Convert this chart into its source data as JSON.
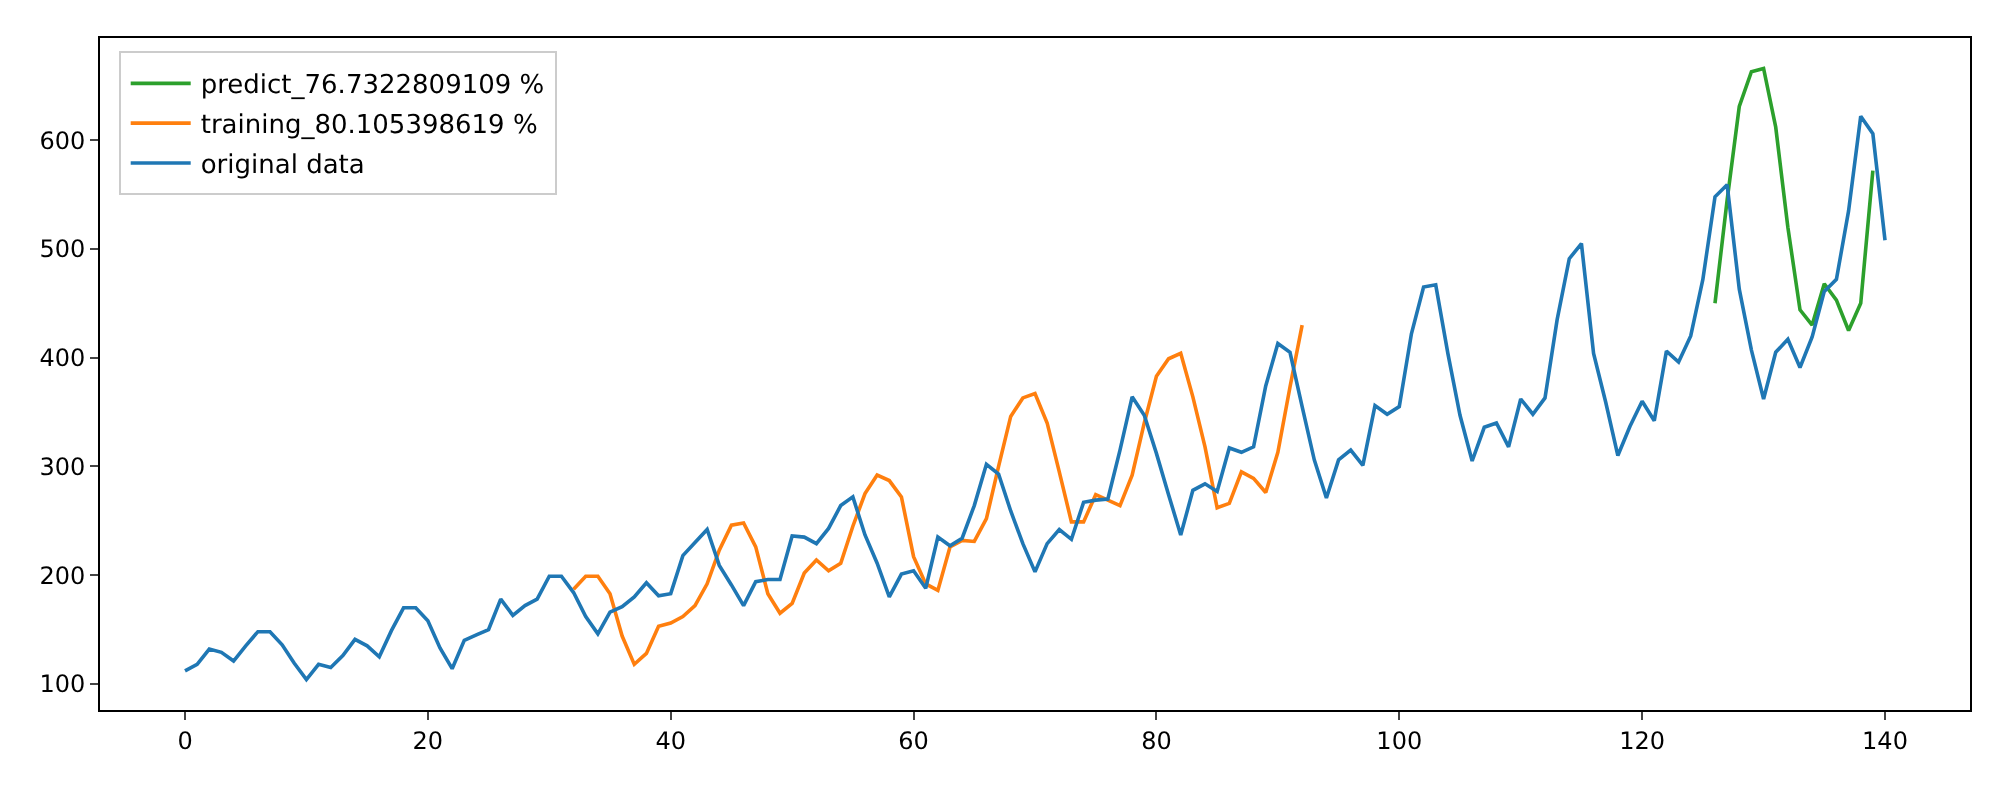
{
  "chart_data": {
    "type": "line",
    "xlim": [
      -7,
      147
    ],
    "ylim": [
      76,
      694
    ],
    "xticks": [
      0,
      20,
      40,
      60,
      80,
      100,
      120,
      140
    ],
    "yticks": [
      100,
      200,
      300,
      400,
      500,
      600
    ],
    "legend": "top left",
    "series": [
      {
        "name": "predict_76.7322809109 %",
        "color": "#2ca02c",
        "x": [
          126,
          127,
          128,
          129,
          130,
          131,
          132,
          133,
          134,
          135,
          136,
          137,
          138,
          139
        ],
        "values": [
          450,
          545,
          631,
          663,
          666,
          612,
          520,
          444,
          430,
          468,
          453,
          425,
          450,
          572
        ]
      },
      {
        "name": "training_80.105398619 %",
        "color": "#ff7f0e",
        "x": [
          32,
          33,
          34,
          35,
          36,
          37,
          38,
          39,
          40,
          41,
          42,
          43,
          44,
          45,
          46,
          47,
          48,
          49,
          50,
          51,
          52,
          53,
          54,
          55,
          56,
          57,
          58,
          59,
          60,
          61,
          62,
          63,
          64,
          65,
          66,
          67,
          68,
          69,
          70,
          71,
          72,
          73,
          74,
          75,
          76,
          77,
          78,
          79,
          80,
          81,
          82,
          83,
          84,
          85,
          86,
          87,
          88,
          89,
          90,
          91,
          92
        ],
        "values": [
          187,
          199,
          199,
          183,
          144,
          118,
          128,
          153,
          156,
          162,
          172,
          192,
          223,
          246,
          248,
          226,
          183,
          165,
          174,
          202,
          214,
          204,
          211,
          245,
          275,
          292,
          287,
          272,
          217,
          192,
          186,
          226,
          232,
          231,
          252,
          300,
          346,
          363,
          367,
          340,
          295,
          249,
          249,
          274,
          269,
          264,
          292,
          340,
          383,
          399,
          404,
          364,
          318,
          262,
          266,
          295,
          289,
          276,
          313,
          373,
          430
        ]
      },
      {
        "name": "original data",
        "color": "#1f77b4",
        "x": [
          0,
          1,
          2,
          3,
          4,
          5,
          6,
          7,
          8,
          9,
          10,
          11,
          12,
          13,
          14,
          15,
          16,
          17,
          18,
          19,
          20,
          21,
          22,
          23,
          24,
          25,
          26,
          27,
          28,
          29,
          30,
          31,
          32,
          33,
          34,
          35,
          36,
          37,
          38,
          39,
          40,
          41,
          42,
          43,
          44,
          45,
          46,
          47,
          48,
          49,
          50,
          51,
          52,
          53,
          54,
          55,
          56,
          57,
          58,
          59,
          60,
          61,
          62,
          63,
          64,
          65,
          66,
          67,
          68,
          69,
          70,
          71,
          72,
          73,
          74,
          75,
          76,
          77,
          78,
          79,
          80,
          81,
          82,
          83,
          84,
          85,
          86,
          87,
          88,
          89,
          90,
          91,
          92,
          93,
          94,
          95,
          96,
          97,
          98,
          99,
          100,
          101,
          102,
          103,
          104,
          105,
          106,
          107,
          108,
          109,
          110,
          111,
          112,
          113,
          114,
          115,
          116,
          117,
          118,
          119,
          120,
          121,
          122,
          123,
          124,
          125,
          126,
          127,
          128,
          129,
          130,
          131,
          132,
          133,
          134,
          135,
          136,
          137,
          138,
          139,
          140
        ],
        "values": [
          112,
          118,
          132,
          129,
          121,
          135,
          148,
          148,
          136,
          119,
          104,
          118,
          115,
          126,
          141,
          135,
          125,
          149,
          170,
          170,
          158,
          133,
          114,
          140,
          145,
          150,
          178,
          163,
          172,
          178,
          199,
          199,
          184,
          162,
          146,
          166,
          171,
          180,
          193,
          181,
          183,
          218,
          230,
          242,
          209,
          191,
          172,
          194,
          196,
          196,
          236,
          235,
          229,
          243,
          264,
          272,
          237,
          211,
          180,
          201,
          204,
          188,
          235,
          227,
          234,
          264,
          302,
          293,
          259,
          229,
          203,
          229,
          242,
          233,
          267,
          269,
          270,
          315,
          364,
          347,
          312,
          274,
          237,
          278,
          284,
          277,
          317,
          313,
          318,
          374,
          413,
          405,
          355,
          306,
          271,
          306,
          315,
          301,
          356,
          348,
          355,
          422,
          465,
          467,
          404,
          347,
          305,
          336,
          340,
          318,
          362,
          348,
          363,
          435,
          491,
          505,
          404,
          359,
          310,
          337,
          360,
          342,
          406,
          396,
          420,
          472,
          548,
          559,
          463,
          407,
          362,
          405,
          417,
          391,
          419,
          461,
          472,
          535,
          622,
          606,
          508
        ]
      }
    ]
  }
}
